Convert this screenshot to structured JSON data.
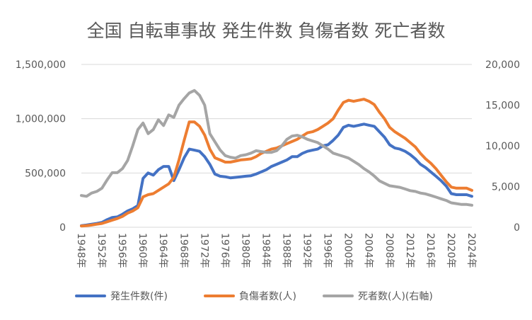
{
  "chart_data": {
    "type": "line",
    "title": "全国 自転車事故 発生件数 負傷者数 死亡者数",
    "x": [
      1948,
      1949,
      1950,
      1951,
      1952,
      1953,
      1954,
      1955,
      1956,
      1957,
      1958,
      1959,
      1960,
      1961,
      1962,
      1963,
      1964,
      1965,
      1966,
      1967,
      1968,
      1969,
      1970,
      1971,
      1972,
      1973,
      1974,
      1975,
      1976,
      1977,
      1978,
      1979,
      1980,
      1981,
      1982,
      1983,
      1984,
      1985,
      1986,
      1987,
      1988,
      1989,
      1990,
      1991,
      1992,
      1993,
      1994,
      1995,
      1996,
      1997,
      1998,
      1999,
      2000,
      2001,
      2002,
      2003,
      2004,
      2005,
      2006,
      2007,
      2008,
      2009,
      2010,
      2011,
      2012,
      2013,
      2014,
      2015,
      2016,
      2017,
      2018,
      2019,
      2020,
      2021,
      2022,
      2023,
      2024
    ],
    "x_tick_labels": [
      "1948年",
      "1952年",
      "1956年",
      "1960年",
      "1964年",
      "1968年",
      "1972年",
      "1976年",
      "1980年",
      "1984年",
      "1988年",
      "1992年",
      "1996年",
      "2000年",
      "2004年",
      "2008年",
      "2012年",
      "2016年",
      "2020年",
      "2024年"
    ],
    "y_left": {
      "min": 0,
      "max": 1500000,
      "ticks": [
        "0",
        "500,000",
        "1,000,000",
        "1,500,000"
      ]
    },
    "y_right": {
      "min": 0,
      "max": 20000,
      "ticks": [
        "0",
        "5,000",
        "10,000",
        "15,000",
        "20,000"
      ],
      "label": "右軸"
    },
    "grid": true,
    "legend_position": "bottom",
    "series": [
      {
        "name": "発生件数(件)",
        "axis": "left",
        "color": "#4472C4",
        "values": [
          15000,
          20000,
          28000,
          35000,
          45000,
          70000,
          90000,
          95000,
          120000,
          150000,
          170000,
          200000,
          450000,
          500000,
          480000,
          530000,
          560000,
          560000,
          430000,
          530000,
          640000,
          720000,
          710000,
          700000,
          650000,
          580000,
          490000,
          470000,
          465000,
          455000,
          460000,
          465000,
          470000,
          475000,
          490000,
          510000,
          530000,
          560000,
          580000,
          600000,
          620000,
          650000,
          650000,
          680000,
          700000,
          710000,
          720000,
          750000,
          760000,
          800000,
          850000,
          920000,
          940000,
          930000,
          940000,
          950000,
          940000,
          930000,
          880000,
          830000,
          760000,
          730000,
          720000,
          700000,
          670000,
          630000,
          580000,
          550000,
          510000,
          470000,
          430000,
          380000,
          310000,
          300000,
          300000,
          300000,
          285000
        ],
        "show_in_legend": true
      },
      {
        "name": "負傷者数(人)",
        "axis": "left",
        "color": "#ED7D31",
        "values": [
          12000,
          15000,
          20000,
          28000,
          35000,
          50000,
          65000,
          80000,
          100000,
          130000,
          150000,
          180000,
          280000,
          300000,
          310000,
          340000,
          370000,
          400000,
          460000,
          620000,
          800000,
          970000,
          970000,
          930000,
          850000,
          720000,
          640000,
          620000,
          600000,
          600000,
          610000,
          620000,
          625000,
          630000,
          650000,
          680000,
          700000,
          720000,
          730000,
          750000,
          770000,
          790000,
          810000,
          840000,
          870000,
          880000,
          900000,
          930000,
          960000,
          1000000,
          1080000,
          1150000,
          1170000,
          1160000,
          1170000,
          1180000,
          1160000,
          1130000,
          1060000,
          1000000,
          920000,
          880000,
          850000,
          820000,
          780000,
          740000,
          680000,
          630000,
          590000,
          540000,
          480000,
          420000,
          370000,
          360000,
          360000,
          360000,
          340000
        ],
        "show_in_legend": true
      },
      {
        "name": "死者数(人)(右軸)",
        "axis": "right",
        "color": "#A5A5A5",
        "values": [
          3900,
          3800,
          4200,
          4400,
          4800,
          5800,
          6700,
          6700,
          7200,
          8200,
          10000,
          12000,
          12800,
          11500,
          12000,
          13200,
          12500,
          13800,
          13500,
          15000,
          15800,
          16500,
          16800,
          16200,
          15000,
          11500,
          10500,
          9500,
          8800,
          8600,
          8500,
          8800,
          8900,
          9100,
          9400,
          9300,
          9200,
          9200,
          9400,
          10000,
          10800,
          11200,
          11300,
          11100,
          10800,
          10600,
          10400,
          10000,
          9600,
          9100,
          8900,
          8700,
          8500,
          8100,
          7700,
          7200,
          6800,
          6300,
          5700,
          5400,
          5100,
          5000,
          4900,
          4700,
          4500,
          4400,
          4200,
          4100,
          3900,
          3700,
          3500,
          3300,
          3000,
          2900,
          2800,
          2800,
          2700
        ],
        "show_in_legend": true
      }
    ]
  }
}
